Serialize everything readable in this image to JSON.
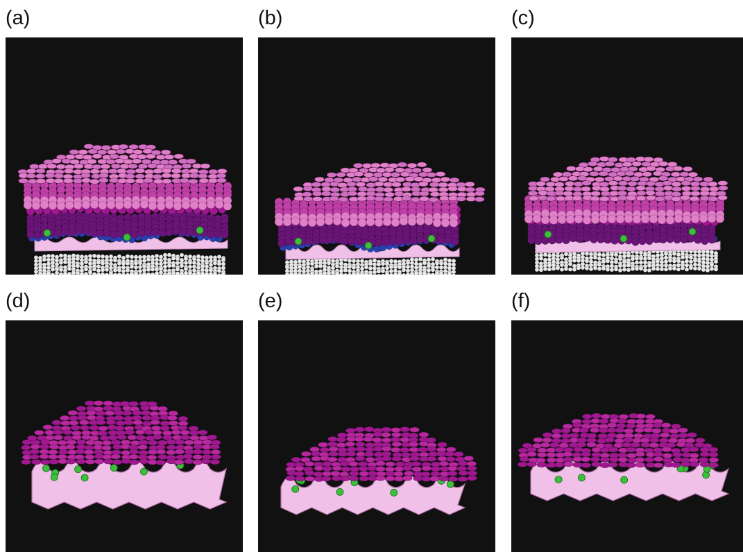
{
  "figure": {
    "panels": [
      {
        "label": "(a)",
        "scene": "full-stack"
      },
      {
        "label": "(b)",
        "scene": "full-stack"
      },
      {
        "label": "(c)",
        "scene": "full-stack"
      },
      {
        "label": "(d)",
        "scene": "top-layer-and-membrane"
      },
      {
        "label": "(e)",
        "scene": "top-layer-and-membrane"
      },
      {
        "label": "(f)",
        "scene": "top-layer-and-membrane"
      }
    ]
  },
  "colors": {
    "background": "#111111",
    "top_layer_light": "#e080c8",
    "top_layer_mid": "#c040a8",
    "magenta_layer": "#a01890",
    "purple_layer": "#6a1478",
    "blue_layer": "#2840b0",
    "membrane": "#f0c0e8",
    "base_spheres": "#e8e8e8",
    "green_spheres": "#3cc03c"
  }
}
